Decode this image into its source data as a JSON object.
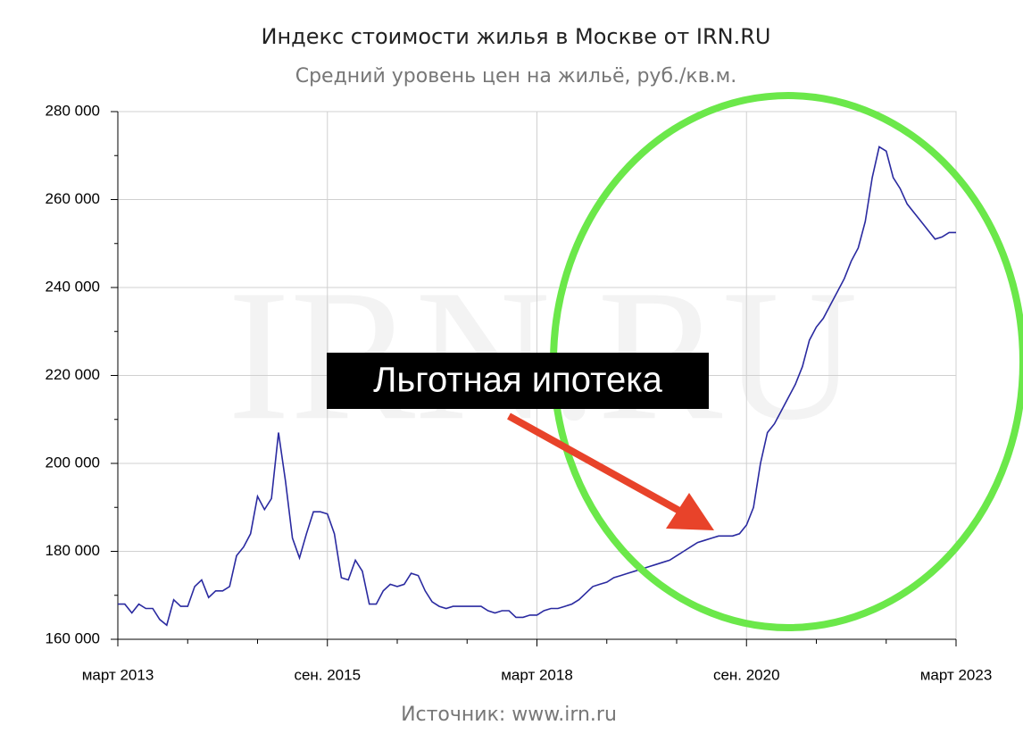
{
  "chart_data": {
    "type": "line",
    "title": "Индекс стоимости жилья в Москве от IRN.RU",
    "subtitle": "Средний уровень цен на жильё, руб./кв.м.",
    "source": "Источник: www.irn.ru",
    "watermark": "IRN.RU",
    "annotation": "Льготная ипотека",
    "categories": [
      "март 2013",
      null,
      null,
      null,
      null,
      null,
      null,
      null,
      null,
      null,
      null,
      null,
      null,
      null,
      null,
      null,
      null,
      null,
      null,
      null,
      null,
      null,
      null,
      null,
      null,
      null,
      null,
      null,
      null,
      null,
      "сен. 2015",
      null,
      null,
      null,
      null,
      null,
      null,
      null,
      null,
      null,
      null,
      null,
      null,
      null,
      null,
      null,
      null,
      null,
      null,
      null,
      null,
      null,
      null,
      null,
      null,
      null,
      null,
      null,
      null,
      null,
      "март 2018",
      null,
      null,
      null,
      null,
      null,
      null,
      null,
      null,
      null,
      null,
      null,
      null,
      null,
      null,
      null,
      null,
      null,
      null,
      null,
      null,
      null,
      null,
      null,
      null,
      null,
      null,
      null,
      null,
      null,
      "сен. 2020",
      null,
      null,
      null,
      null,
      null,
      null,
      null,
      null,
      null,
      null,
      null,
      null,
      null,
      null,
      null,
      null,
      null,
      null,
      null,
      null,
      null,
      null,
      null,
      null,
      null,
      null,
      null,
      null,
      null,
      "март 2023"
    ],
    "series": [
      {
        "color": "#2a2aa0",
        "values": [
          168000,
          168000,
          166000,
          168000,
          167000,
          167000,
          164500,
          163200,
          169000,
          167500,
          167500,
          172000,
          173500,
          169500,
          171000,
          171000,
          172000,
          179000,
          181000,
          184000,
          192500,
          189500,
          192000,
          207000,
          196000,
          183000,
          178500,
          184000,
          189000,
          189000,
          188500,
          184000,
          174000,
          173500,
          178000,
          175500,
          168000,
          168000,
          171000,
          172500,
          172000,
          172500,
          175000,
          174500,
          171000,
          168500,
          167500,
          167000,
          167500,
          167500,
          167500,
          167500,
          167500,
          166500,
          166000,
          166500,
          166500,
          165000,
          165000,
          165500,
          165500,
          166500,
          167000,
          167000,
          167500,
          168000,
          169000,
          170500,
          172000,
          172500,
          173000,
          174000,
          174500,
          175000,
          175500,
          176000,
          176500,
          177000,
          177500,
          178000,
          179000,
          180000,
          181000,
          182000,
          182500,
          183000,
          183500,
          183500,
          183500,
          184000,
          186000,
          190000,
          200000,
          207000,
          209000,
          212000,
          215000,
          218000,
          222000,
          228000,
          231000,
          233000,
          236000,
          239000,
          242000,
          246000,
          249000,
          255000,
          265000,
          272000,
          271000,
          265000,
          262500,
          259000,
          257000,
          255000,
          253000,
          251000,
          251500,
          252500,
          252500
        ]
      }
    ],
    "ylim": [
      160000,
      280000
    ],
    "yticks": [
      {
        "value": 160000,
        "label": "160 000"
      },
      {
        "value": 180000,
        "label": "180 000"
      },
      {
        "value": 200000,
        "label": "200 000"
      },
      {
        "value": 220000,
        "label": "220 000"
      },
      {
        "value": 240000,
        "label": "240 000"
      },
      {
        "value": 260000,
        "label": "260 000"
      },
      {
        "value": 280000,
        "label": "280 000"
      }
    ],
    "grid": true
  }
}
